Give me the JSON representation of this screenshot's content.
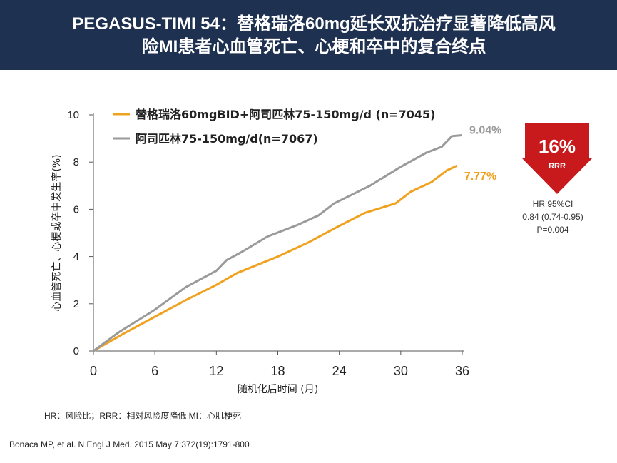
{
  "header": {
    "title_line1": "PEGASUS-TIMI 54：替格瑞洛60mg延长双抗治疗显著降低高风",
    "title_line2": "险MI患者心血管死亡、心梗和卒中的复合终点"
  },
  "chart_data": {
    "type": "line",
    "ylabel": "心血管死亡、心梗或卒中发生率(%)",
    "xlabel": "随机化后时间 (月)",
    "ylim": [
      0,
      10
    ],
    "xlim": [
      0,
      36
    ],
    "yticks": [
      0,
      2,
      4,
      6,
      8,
      10
    ],
    "xticks": [
      0,
      6,
      12,
      18,
      24,
      30,
      36
    ],
    "legend_position": "top-left",
    "series": [
      {
        "name": "替格瑞洛60mgBID+阿司匹林75-150mg/d  (n=7045)",
        "color": "#f0a21f",
        "end_label": "7.77%",
        "x": [
          0,
          3,
          6,
          9,
          12,
          14,
          16,
          18,
          21,
          24,
          26.5,
          29.5,
          31,
          33,
          34.5,
          35.5
        ],
        "y": [
          0,
          0.75,
          1.45,
          2.15,
          2.8,
          3.3,
          3.65,
          4.0,
          4.6,
          5.3,
          5.85,
          6.25,
          6.75,
          7.15,
          7.65,
          7.85
        ]
      },
      {
        "name": "阿司匹林75-150mg/d(n=7067)",
        "color": "#9a9a9a",
        "end_label": "9.04%",
        "x": [
          0,
          2.5,
          6,
          9,
          12,
          13,
          14.5,
          17,
          20,
          22,
          23.5,
          27,
          30,
          32.5,
          34,
          35,
          36
        ],
        "y": [
          0,
          0.8,
          1.75,
          2.7,
          3.4,
          3.85,
          4.2,
          4.85,
          5.35,
          5.75,
          6.25,
          7.0,
          7.8,
          8.4,
          8.65,
          9.1,
          9.14
        ]
      }
    ]
  },
  "rrr": {
    "value": "16%",
    "label": "RRR",
    "color": "#c8191c"
  },
  "stats": {
    "hr_label": "HR 95%CI",
    "hr_value": "0.84 (0.74-0.95)",
    "p_value": "P=0.004"
  },
  "footnote": "HR：风险比；RRR：相对风险度降低  MI：心肌梗死",
  "citation": "Bonaca MP, et al. N Engl J Med. 2015 May 7;372(19):1791-800"
}
